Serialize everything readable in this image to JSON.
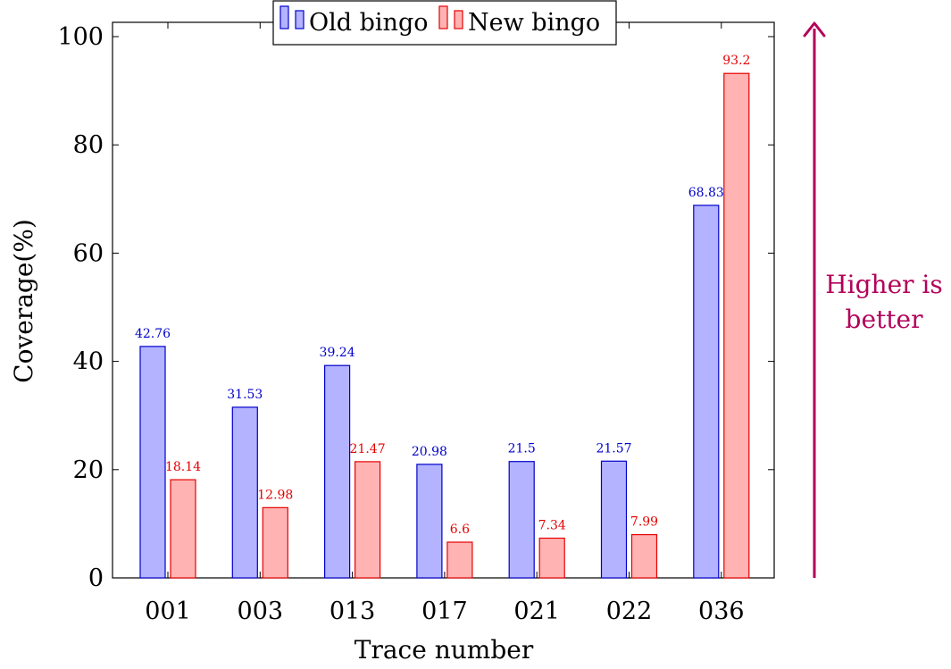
{
  "chart_data": {
    "type": "bar",
    "categories": [
      "001",
      "003",
      "013",
      "017",
      "021",
      "022",
      "036"
    ],
    "series": [
      {
        "name": "Old bingo",
        "values": [
          42.76,
          31.53,
          39.24,
          20.98,
          21.5,
          21.57,
          68.83
        ],
        "fill": "#b3b3ff",
        "stroke": "#0000cc",
        "label_color": "#0000cc"
      },
      {
        "name": "New bingo",
        "values": [
          18.14,
          12.98,
          21.47,
          6.6,
          7.34,
          7.99,
          93.2
        ],
        "fill": "#ffb3b3",
        "stroke": "#e60000",
        "label_color": "#e60000"
      }
    ],
    "xlabel": "Trace number",
    "ylabel": "Coverage(%)",
    "ylim": [
      0,
      100
    ],
    "yticks": [
      0,
      20,
      40,
      60,
      80,
      100
    ],
    "legend_position": "top-center",
    "grid": false
  },
  "annotation": {
    "line1": "Higher is",
    "line2": "better",
    "color": "#b3005a"
  }
}
